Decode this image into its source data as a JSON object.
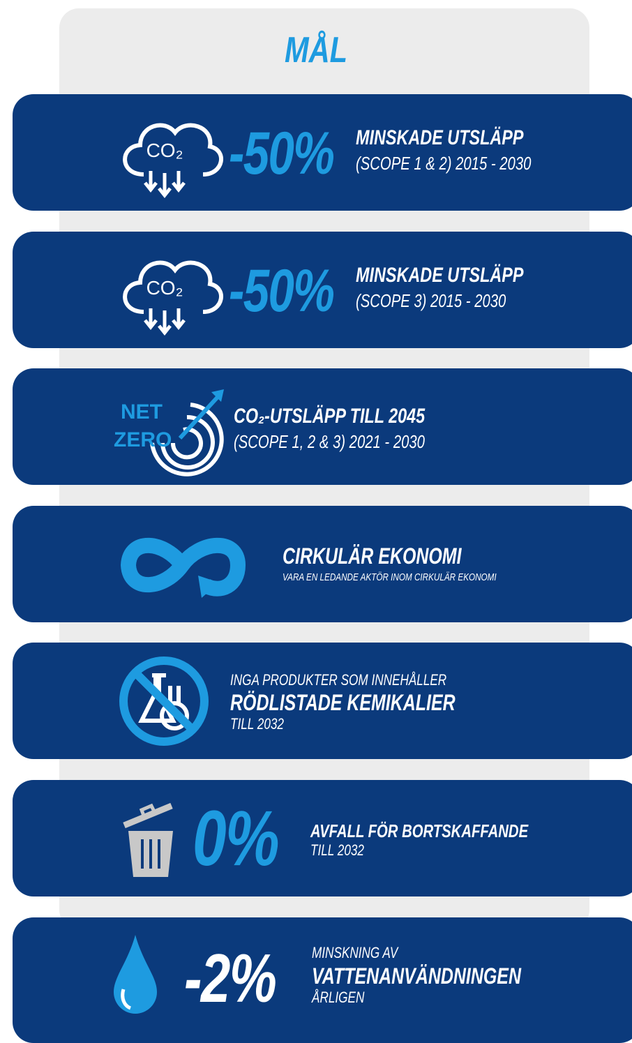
{
  "title": "MÅL",
  "cards": [
    {
      "icon_text": [
        "CO₂"
      ],
      "figure": "-50%",
      "lines": [
        "MINSKADE UTSLÄPP",
        "(SCOPE 1 & 2) 2015 - 2030"
      ]
    },
    {
      "icon_text": [
        "CO₂"
      ],
      "figure": "-50%",
      "lines": [
        "MINSKADE UTSLÄPP",
        "(SCOPE 3) 2015 - 2030"
      ]
    },
    {
      "icon_text": [
        "NET",
        "ZERO"
      ],
      "lines": [
        "CO₂-UTSLÄPP TILL 2045",
        "(SCOPE 1, 2 & 3) 2021 - 2030"
      ]
    },
    {
      "lines": [
        "CIRKULÄR EKONOMI",
        "VARA EN LEDANDE AKTÖR INOM CIRKULÄR EKONOMI"
      ]
    },
    {
      "lines": [
        "INGA PRODUKTER SOM INNEHÅLLER",
        "RÖDLISTADE KEMIKALIER",
        "TILL 2032"
      ]
    },
    {
      "figure": "0%",
      "lines": [
        "AVFALL FÖR BORTSKAFFANDE",
        "TILL 2032"
      ]
    },
    {
      "figure": "-2%",
      "lines": [
        "MINSKNING AV",
        "VATTENANVÄNDNINGEN",
        "ÅRLIGEN"
      ]
    }
  ]
}
